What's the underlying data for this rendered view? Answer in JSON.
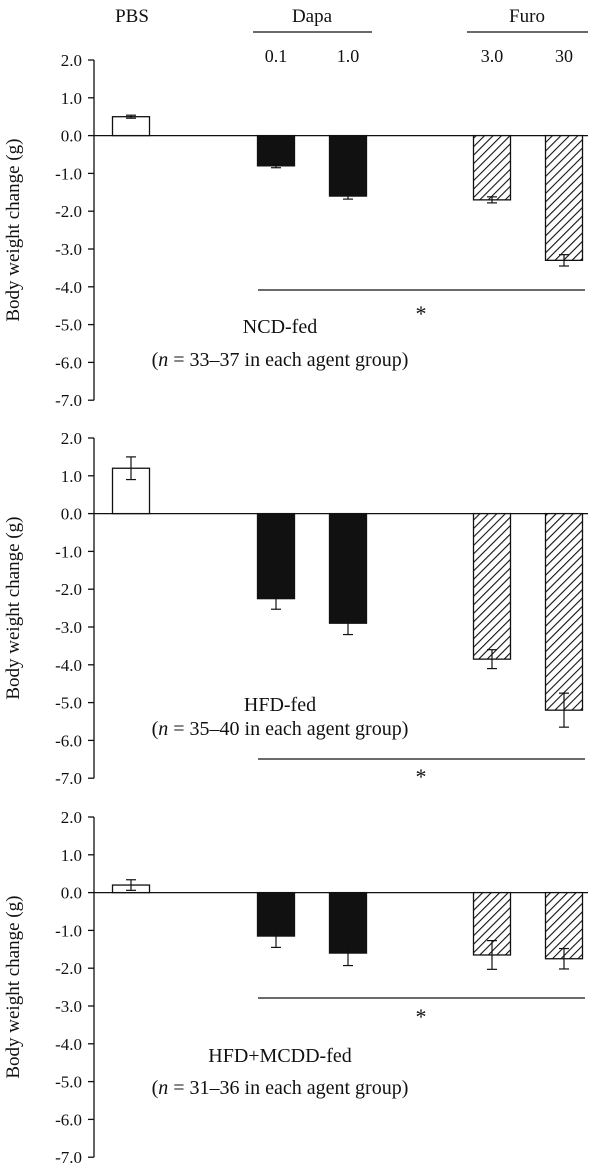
{
  "header": {
    "pbs_label": "PBS",
    "dapa_label": "Dapa",
    "furo_label": "Furo",
    "doses": [
      "0.1",
      "1.0",
      "3.0",
      "30"
    ]
  },
  "chart_data": [
    {
      "type": "bar",
      "panel": "NCD-fed",
      "categories": [
        "PBS",
        "Dapa 0.1",
        "Dapa 1.0",
        "Furo 3.0",
        "Furo 30"
      ],
      "values": [
        0.5,
        -0.8,
        -1.6,
        -1.7,
        -3.3
      ],
      "errors": [
        0.04,
        0.05,
        0.08,
        0.08,
        0.15
      ],
      "fills": [
        "open",
        "solid",
        "solid",
        "hatched",
        "hatched"
      ],
      "ylabel": "Body weight change (g)",
      "ylim": [
        -7.0,
        2.0
      ],
      "yticks": [
        "2.0",
        "1.0",
        "0.0",
        "-1.0",
        "-2.0",
        "-3.0",
        "-4.0",
        "-5.0",
        "-6.0",
        "-7.0"
      ],
      "annotation_main": "NCD-fed",
      "annotation_note_prefix": "(",
      "annotation_note_italic": "n",
      "annotation_note_rest": " = 33–37 in each agent group)",
      "significance_label": "*"
    },
    {
      "type": "bar",
      "panel": "HFD-fed",
      "categories": [
        "PBS",
        "Dapa 0.1",
        "Dapa 1.0",
        "Furo 3.0",
        "Furo 30"
      ],
      "values": [
        1.2,
        -2.25,
        -2.9,
        -3.85,
        -5.2
      ],
      "errors": [
        0.3,
        0.28,
        0.3,
        0.25,
        0.45
      ],
      "fills": [
        "open",
        "solid",
        "solid",
        "hatched",
        "hatched"
      ],
      "ylabel": "Body weight change (g)",
      "ylim": [
        -7.0,
        2.0
      ],
      "yticks": [
        "2.0",
        "1.0",
        "0.0",
        "-1.0",
        "-2.0",
        "-3.0",
        "-4.0",
        "-5.0",
        "-6.0",
        "-7.0"
      ],
      "annotation_main": "HFD-fed",
      "annotation_note_prefix": "(",
      "annotation_note_italic": "n",
      "annotation_note_rest": " = 35–40 in each agent group)",
      "significance_label": "*"
    },
    {
      "type": "bar",
      "panel": "HFD+MCDD-fed",
      "categories": [
        "PBS",
        "Dapa 0.1",
        "Dapa 1.0",
        "Furo 3.0",
        "Furo 30"
      ],
      "values": [
        0.2,
        -1.15,
        -1.6,
        -1.65,
        -1.75
      ],
      "errors": [
        0.14,
        0.3,
        0.33,
        0.38,
        0.27
      ],
      "fills": [
        "open",
        "solid",
        "solid",
        "hatched",
        "hatched"
      ],
      "ylabel": "Body weight change (g)",
      "ylim": [
        -7.0,
        2.0
      ],
      "yticks": [
        "2.0",
        "1.0",
        "0.0",
        "-1.0",
        "-2.0",
        "-3.0",
        "-4.0",
        "-5.0",
        "-6.0",
        "-7.0"
      ],
      "annotation_main": "HFD+MCDD-fed",
      "annotation_note_prefix": "(",
      "annotation_note_italic": "n",
      "annotation_note_rest": " = 31–36 in each agent group)",
      "significance_label": "*"
    }
  ]
}
